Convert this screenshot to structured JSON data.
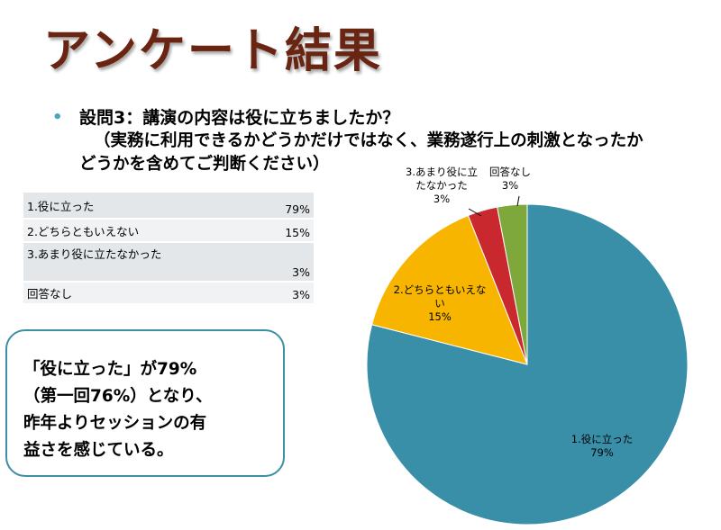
{
  "slide": {
    "title": "アンケート結果",
    "question_line1": "設問3：講演の内容は役に立ちましたか？",
    "question_line2": "（実務に利用できるかどうかだけではなく、業務遂行上の刺激となったか",
    "question_line3": "どうかを含めてご判断ください）"
  },
  "table": {
    "rows": [
      {
        "label": "1.役に立った",
        "value": "79%"
      },
      {
        "label": "2.どちらともいえない",
        "value": "15%"
      },
      {
        "label": "3.あまり役に立たなかった",
        "value": "3%"
      },
      {
        "label": "回答なし",
        "value": "3%"
      }
    ]
  },
  "note": {
    "line1": "「役に立った」が79%",
    "line2": "（第一回76%）となり、",
    "line3": "昨年よりセッションの有",
    "line4": "益さを感じている。"
  },
  "chart_data": {
    "type": "pie",
    "categories": [
      "1.役に立った",
      "2.どちらともいえない",
      "3.あまり役に立たなかった",
      "回答なし"
    ],
    "values": [
      79,
      15,
      3,
      3
    ],
    "value_labels": [
      "79%",
      "15%",
      "3%",
      "3%"
    ],
    "colors": [
      "#3a8fa8",
      "#f7b500",
      "#c8282e",
      "#7fa83c"
    ],
    "label_lines": [
      [
        "1.役に立った",
        "79%"
      ],
      [
        "2.どちらともいえな",
        "い",
        "15%"
      ],
      [
        "3.あまり役に立",
        "たなかった",
        "3%"
      ],
      [
        "回答なし",
        "3%"
      ]
    ]
  }
}
